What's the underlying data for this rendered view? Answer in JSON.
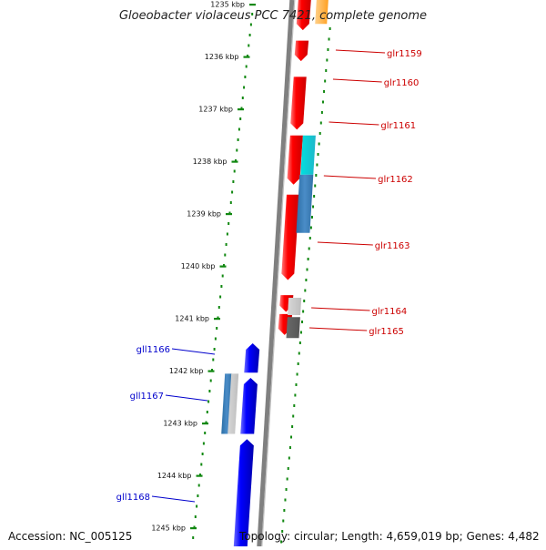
{
  "title": "Gloeobacter violaceus PCC 7421, complete genome",
  "footer": {
    "accession": "Accession: NC_005125",
    "info": "Topology: circular; Length: 4,659,019 bp; Genes: 4,482"
  },
  "colors": {
    "plus_strand": "#ee0000",
    "minus_strand": "#0000ee",
    "forward_label": "#cc0000",
    "reverse_label": "#0000cc",
    "dots": "#118811",
    "axis": "#808080"
  },
  "kbp_labels": [
    "1235 kbp",
    "1236 kbp",
    "1237 kbp",
    "1238 kbp",
    "1239 kbp",
    "1240 kbp",
    "1241 kbp",
    "1242 kbp",
    "1243 kbp",
    "1244 kbp",
    "1245 kbp"
  ],
  "forward_genes": [
    "glr1159",
    "glr1160",
    "glr1161",
    "glr1162",
    "glr1163",
    "glr1164",
    "glr1165"
  ],
  "reverse_genes": [
    "gll1166",
    "gll1167",
    "gll1168"
  ]
}
